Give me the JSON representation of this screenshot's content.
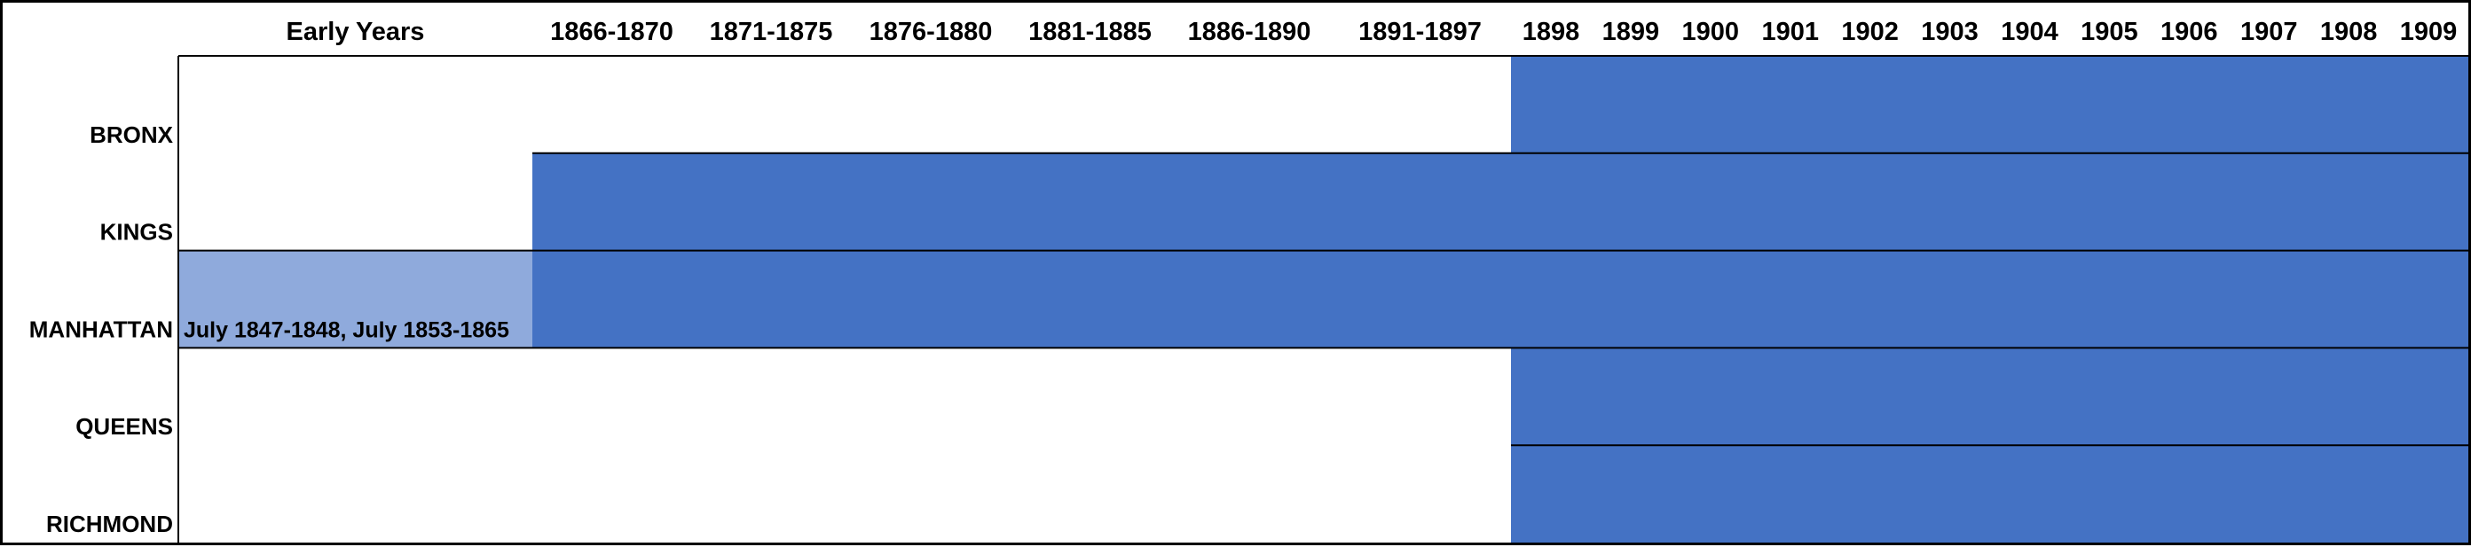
{
  "chart_data": {
    "type": "timeline",
    "title": "",
    "columns": [
      "Early Years",
      "1866-1870",
      "1871-1875",
      "1876-1880",
      "1881-1885",
      "1886-1890",
      "1891-1897",
      "1898",
      "1899",
      "1900",
      "1901",
      "1902",
      "1903",
      "1904",
      "1905",
      "1906",
      "1907",
      "1908",
      "1909"
    ],
    "rows": [
      {
        "label": "BRONX",
        "segments": [
          {
            "from": "1898",
            "to": "1909",
            "shade": "dark"
          }
        ]
      },
      {
        "label": "KINGS",
        "segments": [
          {
            "from": "1866-1870",
            "to": "1909",
            "shade": "dark"
          }
        ]
      },
      {
        "label": "MANHATTAN",
        "segments": [
          {
            "from": "Early Years",
            "to": "Early Years",
            "shade": "light",
            "annotation": "July 1847-1848, July 1853-1865"
          },
          {
            "from": "1866-1870",
            "to": "1909",
            "shade": "dark"
          }
        ]
      },
      {
        "label": "QUEENS",
        "segments": [
          {
            "from": "1898",
            "to": "1909",
            "shade": "dark"
          }
        ]
      },
      {
        "label": "RICHMOND",
        "segments": [
          {
            "from": "1898",
            "to": "1909",
            "shade": "dark"
          }
        ]
      }
    ],
    "colors": {
      "dark": "#4472C4",
      "light": "#8FAADC",
      "line": "#000000"
    }
  }
}
